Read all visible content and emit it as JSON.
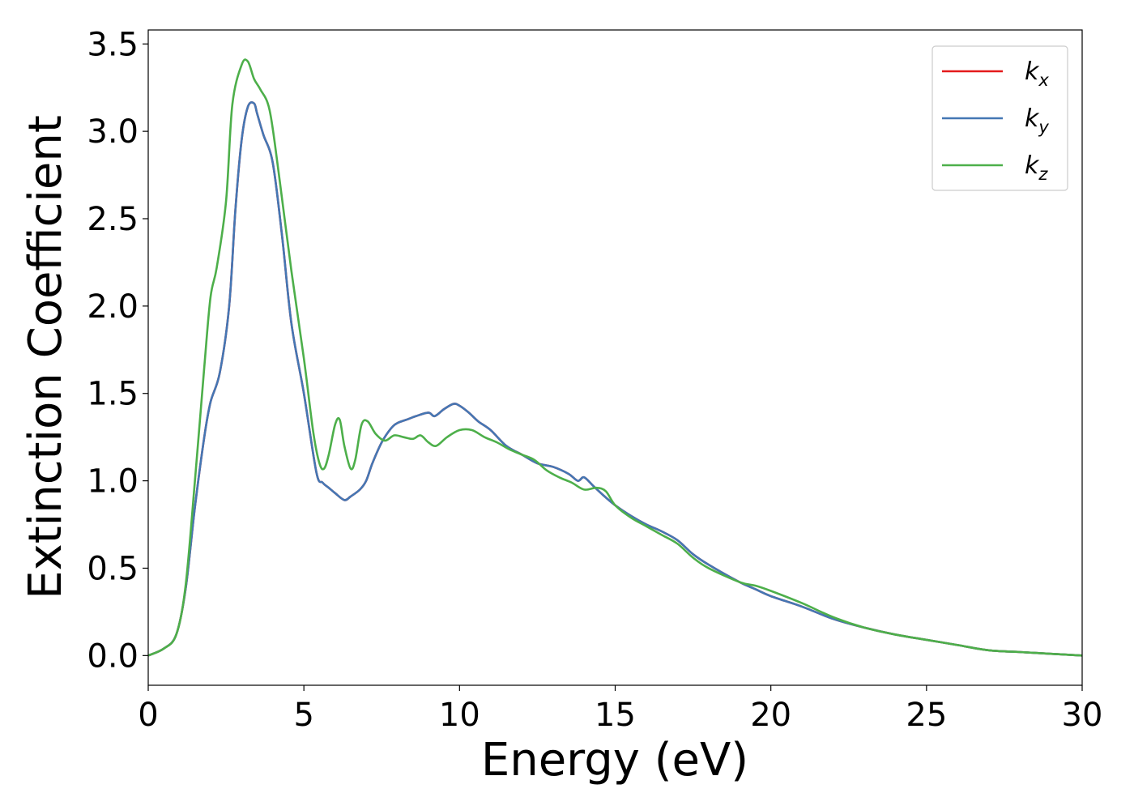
{
  "chart_data": {
    "type": "line",
    "title": "",
    "xlabel": "Energy (eV)",
    "ylabel": "Extinction Coefficient",
    "xlim": [
      0,
      30
    ],
    "ylim": [
      -0.17,
      3.58
    ],
    "xticks": [
      0,
      5,
      10,
      15,
      20,
      25,
      30
    ],
    "xtick_labels": [
      "0",
      "5",
      "10",
      "15",
      "20",
      "25",
      "30"
    ],
    "yticks": [
      0.0,
      0.5,
      1.0,
      1.5,
      2.0,
      2.5,
      3.0,
      3.5
    ],
    "ytick_labels": [
      "0.0",
      "0.5",
      "1.0",
      "1.5",
      "2.0",
      "2.5",
      "3.0",
      "3.5"
    ],
    "grid": false,
    "legend_position": "top-right",
    "series": [
      {
        "name": "k_x",
        "legend_base": "k",
        "legend_sub": "x",
        "color": "#e41a1c",
        "x": [
          0,
          0.5,
          0.9,
          1.2,
          1.5,
          1.8,
          2.0,
          2.3,
          2.6,
          2.8,
          3.0,
          3.2,
          3.4,
          3.5,
          3.7,
          4.0,
          4.3,
          4.6,
          5.0,
          5.4,
          5.6,
          5.8,
          6.0,
          6.3,
          6.5,
          6.8,
          7.0,
          7.2,
          7.5,
          7.8,
          8.0,
          8.3,
          8.6,
          9.0,
          9.2,
          9.5,
          9.8,
          10.0,
          10.3,
          10.6,
          11.0,
          11.5,
          12.0,
          12.5,
          13.0,
          13.5,
          13.8,
          14.0,
          14.3,
          14.6,
          15.0,
          15.5,
          16.0,
          16.5,
          17.0,
          17.5,
          18.0,
          19.0,
          19.5,
          20.0,
          21.0,
          22.0,
          23.0,
          24.0,
          25.0,
          26.0,
          27.0,
          28.0,
          29.0,
          30.0
        ],
        "values": [
          0.0,
          0.04,
          0.12,
          0.38,
          0.85,
          1.25,
          1.45,
          1.62,
          2.0,
          2.55,
          2.95,
          3.14,
          3.16,
          3.1,
          2.98,
          2.82,
          2.4,
          1.9,
          1.5,
          1.05,
          0.99,
          0.96,
          0.93,
          0.89,
          0.91,
          0.95,
          1.0,
          1.1,
          1.22,
          1.3,
          1.33,
          1.35,
          1.37,
          1.39,
          1.37,
          1.41,
          1.44,
          1.43,
          1.39,
          1.34,
          1.29,
          1.2,
          1.15,
          1.1,
          1.08,
          1.04,
          1.0,
          1.02,
          0.97,
          0.92,
          0.86,
          0.8,
          0.75,
          0.71,
          0.66,
          0.58,
          0.52,
          0.42,
          0.38,
          0.34,
          0.28,
          0.21,
          0.16,
          0.12,
          0.09,
          0.06,
          0.03,
          0.02,
          0.01,
          0.0
        ]
      },
      {
        "name": "k_y",
        "legend_base": "k",
        "legend_sub": "y",
        "color": "#4477b4",
        "x": [
          0,
          0.5,
          0.9,
          1.2,
          1.5,
          1.8,
          2.0,
          2.3,
          2.6,
          2.8,
          3.0,
          3.2,
          3.4,
          3.5,
          3.7,
          4.0,
          4.3,
          4.6,
          5.0,
          5.4,
          5.6,
          5.8,
          6.0,
          6.3,
          6.5,
          6.8,
          7.0,
          7.2,
          7.5,
          7.8,
          8.0,
          8.3,
          8.6,
          9.0,
          9.2,
          9.5,
          9.8,
          10.0,
          10.3,
          10.6,
          11.0,
          11.5,
          12.0,
          12.5,
          13.0,
          13.5,
          13.8,
          14.0,
          14.3,
          14.6,
          15.0,
          15.5,
          16.0,
          16.5,
          17.0,
          17.5,
          18.0,
          19.0,
          19.5,
          20.0,
          21.0,
          22.0,
          23.0,
          24.0,
          25.0,
          26.0,
          27.0,
          28.0,
          29.0,
          30.0
        ],
        "values": [
          0.0,
          0.04,
          0.12,
          0.38,
          0.85,
          1.25,
          1.45,
          1.62,
          2.0,
          2.55,
          2.95,
          3.14,
          3.16,
          3.1,
          2.98,
          2.82,
          2.4,
          1.9,
          1.5,
          1.05,
          0.99,
          0.96,
          0.93,
          0.89,
          0.91,
          0.95,
          1.0,
          1.1,
          1.22,
          1.3,
          1.33,
          1.35,
          1.37,
          1.39,
          1.37,
          1.41,
          1.44,
          1.43,
          1.39,
          1.34,
          1.29,
          1.2,
          1.15,
          1.1,
          1.08,
          1.04,
          1.0,
          1.02,
          0.97,
          0.92,
          0.86,
          0.8,
          0.75,
          0.71,
          0.66,
          0.58,
          0.52,
          0.42,
          0.38,
          0.34,
          0.28,
          0.21,
          0.16,
          0.12,
          0.09,
          0.06,
          0.03,
          0.02,
          0.01,
          0.0
        ]
      },
      {
        "name": "k_z",
        "legend_base": "k",
        "legend_sub": "z",
        "color": "#4daf4a",
        "x": [
          0,
          0.5,
          0.9,
          1.2,
          1.5,
          1.8,
          2.0,
          2.2,
          2.5,
          2.7,
          3.0,
          3.2,
          3.4,
          3.6,
          3.9,
          4.2,
          4.6,
          5.0,
          5.3,
          5.5,
          5.65,
          5.8,
          6.0,
          6.15,
          6.3,
          6.5,
          6.65,
          6.85,
          7.05,
          7.3,
          7.6,
          7.9,
          8.2,
          8.5,
          8.75,
          9.0,
          9.25,
          9.6,
          10.0,
          10.4,
          10.8,
          11.2,
          11.6,
          12.0,
          12.4,
          12.8,
          13.2,
          13.6,
          14.0,
          14.4,
          14.7,
          15.0,
          15.5,
          16.0,
          16.5,
          17.0,
          17.5,
          18.0,
          19.0,
          19.5,
          20.0,
          21.0,
          22.0,
          23.0,
          24.0,
          25.0,
          26.0,
          27.0,
          28.0,
          29.0,
          30.0
        ],
        "values": [
          0.0,
          0.04,
          0.12,
          0.4,
          1.0,
          1.65,
          2.05,
          2.22,
          2.6,
          3.15,
          3.38,
          3.4,
          3.3,
          3.24,
          3.12,
          2.75,
          2.2,
          1.7,
          1.28,
          1.1,
          1.07,
          1.15,
          1.32,
          1.35,
          1.2,
          1.07,
          1.12,
          1.32,
          1.34,
          1.27,
          1.23,
          1.26,
          1.25,
          1.24,
          1.26,
          1.22,
          1.2,
          1.25,
          1.29,
          1.29,
          1.25,
          1.22,
          1.18,
          1.15,
          1.12,
          1.06,
          1.02,
          0.99,
          0.95,
          0.96,
          0.94,
          0.86,
          0.79,
          0.74,
          0.69,
          0.64,
          0.56,
          0.5,
          0.42,
          0.4,
          0.37,
          0.3,
          0.22,
          0.16,
          0.12,
          0.09,
          0.06,
          0.03,
          0.02,
          0.01,
          0.0
        ]
      }
    ]
  }
}
